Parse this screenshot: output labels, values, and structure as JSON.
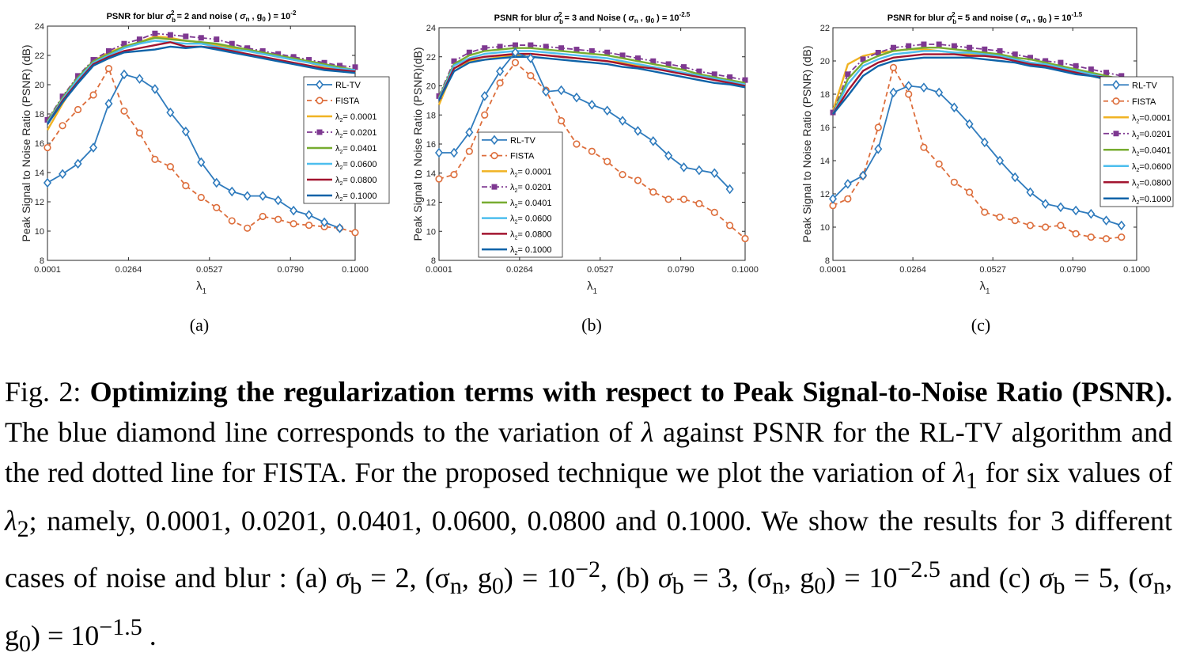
{
  "chart_data": [
    {
      "type": "line",
      "panel_label": "(a)",
      "title_parts": [
        "PSNR for blur ",
        "σ",
        "b",
        "2",
        " = 2 and noise ( ",
        "σ",
        "n",
        " , g",
        "0",
        " ) = 10",
        "-2"
      ],
      "xlabel": "λ",
      "xlabel_sub": "1",
      "ylabel": "Peak Signal to Noise Ratio (PSNR) (dB)",
      "x": [
        0.0001,
        0.005,
        0.01,
        0.015,
        0.02,
        0.025,
        0.03,
        0.035,
        0.04,
        0.045,
        0.05,
        0.055,
        0.06,
        0.065,
        0.07,
        0.075,
        0.08,
        0.085,
        0.09,
        0.095,
        0.1
      ],
      "xticks": [
        "0.0001",
        "0.0264",
        "0.0527",
        "0.0790",
        "0.1000"
      ],
      "xlim": [
        0.0001,
        0.1
      ],
      "ylim": [
        8,
        24
      ],
      "yticks": [
        8,
        10,
        12,
        14,
        16,
        18,
        20,
        22,
        24
      ],
      "legend_position": "right",
      "series": [
        {
          "name": "RL-TV",
          "color": "#2f7bbd",
          "marker": "diamond",
          "style": "solid",
          "values": [
            13.3,
            13.9,
            14.6,
            15.7,
            18.7,
            20.7,
            20.4,
            19.7,
            18.1,
            16.8,
            14.7,
            13.3,
            12.7,
            12.4,
            12.4,
            12.1,
            11.4,
            11.1,
            10.6,
            10.2,
            null
          ]
        },
        {
          "name": "FISTA",
          "color": "#dd6e3c",
          "marker": "circle",
          "style": "dashed",
          "values": [
            15.7,
            17.2,
            18.3,
            19.3,
            21.1,
            18.2,
            16.7,
            14.9,
            14.4,
            13.1,
            12.3,
            11.6,
            10.7,
            10.2,
            11.0,
            10.8,
            10.5,
            10.4,
            10.3,
            10.2,
            9.9
          ]
        },
        {
          "name": "λ2= 0.0001",
          "color": "#f0b323",
          "marker": "",
          "style": "solid",
          "values": [
            16.9,
            18.7,
            20.4,
            21.6,
            22.2,
            22.6,
            22.9,
            23.3,
            23.2,
            23.0,
            22.9,
            22.7,
            22.5,
            22.3,
            22.1,
            21.9,
            21.7,
            21.5,
            21.2,
            21.0,
            20.8
          ]
        },
        {
          "name": "λ2= 0.0201",
          "color": "#7e3891",
          "marker": "square",
          "style": "dashdot",
          "values": [
            17.6,
            19.2,
            20.6,
            21.7,
            22.3,
            22.8,
            23.1,
            23.5,
            23.4,
            23.3,
            23.2,
            23.1,
            22.8,
            22.5,
            22.3,
            22.1,
            21.9,
            21.7,
            21.5,
            21.3,
            21.2
          ]
        },
        {
          "name": "λ2= 0.0401",
          "color": "#77ac30",
          "marker": "",
          "style": "solid",
          "values": [
            17.5,
            19.1,
            20.5,
            21.6,
            22.1,
            22.6,
            22.9,
            23.2,
            23.1,
            23.0,
            22.9,
            22.8,
            22.6,
            22.4,
            22.2,
            22.0,
            21.8,
            21.6,
            21.4,
            21.2,
            21.0
          ]
        },
        {
          "name": "λ2= 0.0600",
          "color": "#4dbeee",
          "marker": "",
          "style": "solid",
          "values": [
            17.4,
            19.0,
            20.4,
            21.5,
            22.0,
            22.5,
            22.8,
            23.0,
            22.9,
            22.8,
            22.8,
            22.6,
            22.4,
            22.3,
            22.1,
            21.9,
            21.7,
            21.5,
            21.3,
            21.1,
            21.0
          ]
        },
        {
          "name": "λ2= 0.0800",
          "color": "#a2142f",
          "marker": "",
          "style": "solid",
          "values": [
            17.3,
            18.9,
            20.2,
            21.4,
            21.9,
            22.3,
            22.5,
            22.7,
            22.9,
            22.6,
            22.6,
            22.5,
            22.3,
            22.1,
            21.9,
            21.7,
            21.5,
            21.3,
            21.1,
            21.0,
            20.9
          ]
        },
        {
          "name": "λ2= 0.1000",
          "color": "#0e63a8",
          "marker": "",
          "style": "solid",
          "values": [
            17.3,
            18.8,
            20.1,
            21.3,
            21.8,
            22.2,
            22.3,
            22.4,
            22.6,
            22.5,
            22.6,
            22.4,
            22.2,
            22.0,
            21.8,
            21.6,
            21.4,
            21.2,
            21.0,
            20.9,
            20.8
          ]
        }
      ]
    },
    {
      "type": "line",
      "panel_label": "(b)",
      "title_parts": [
        "PSNR for blur  ",
        "σ",
        "b",
        "2",
        " = 3 and Noise ( ",
        "σ",
        "n",
        " , g",
        "0",
        " ) = 10",
        "-2.5"
      ],
      "xlabel": "λ",
      "xlabel_sub": "1",
      "ylabel": "Peak Signal to Noise Ratio (PSNR)(dB)",
      "x": [
        0.0001,
        0.005,
        0.01,
        0.015,
        0.02,
        0.025,
        0.03,
        0.035,
        0.04,
        0.045,
        0.05,
        0.055,
        0.06,
        0.065,
        0.07,
        0.075,
        0.08,
        0.085,
        0.09,
        0.095,
        0.1
      ],
      "xticks": [
        "0.0001",
        "0.0264",
        "0.0527",
        "0.0790",
        "0.1000"
      ],
      "xlim": [
        0.0001,
        0.1
      ],
      "ylim": [
        8,
        24
      ],
      "yticks": [
        8,
        10,
        12,
        14,
        16,
        18,
        20,
        22,
        24
      ],
      "legend_position": "left",
      "series": [
        {
          "name": "RL-TV",
          "color": "#2f7bbd",
          "marker": "diamond",
          "style": "solid",
          "values": [
            15.4,
            15.4,
            16.8,
            19.3,
            21.0,
            22.3,
            21.9,
            19.6,
            19.7,
            19.2,
            18.7,
            18.3,
            17.6,
            16.9,
            16.2,
            15.2,
            14.4,
            14.2,
            14.0,
            12.9,
            null
          ]
        },
        {
          "name": "FISTA",
          "color": "#dd6e3c",
          "marker": "circle",
          "style": "dashed",
          "values": [
            13.6,
            13.9,
            15.5,
            18.0,
            20.2,
            21.6,
            20.7,
            19.7,
            17.6,
            16.0,
            15.5,
            14.8,
            13.9,
            13.5,
            12.7,
            12.2,
            12.2,
            11.9,
            11.3,
            10.4,
            9.5
          ]
        },
        {
          "name": "λ2= 0.0001",
          "color": "#f0b323",
          "marker": "",
          "style": "solid",
          "values": [
            18.7,
            21.2,
            21.7,
            21.8,
            22.0,
            22.1,
            22.2,
            22.1,
            22.0,
            21.9,
            21.8,
            21.7,
            21.6,
            21.4,
            21.3,
            21.1,
            20.9,
            20.7,
            20.5,
            20.3,
            20.1
          ]
        },
        {
          "name": "λ2= 0.0201",
          "color": "#7e3891",
          "marker": "square",
          "style": "dashdot",
          "values": [
            19.3,
            21.7,
            22.3,
            22.6,
            22.7,
            22.8,
            22.8,
            22.7,
            22.6,
            22.5,
            22.4,
            22.3,
            22.1,
            21.9,
            21.7,
            21.5,
            21.3,
            21.0,
            20.8,
            20.6,
            20.4
          ]
        },
        {
          "name": "λ2= 0.0401",
          "color": "#77ac30",
          "marker": "",
          "style": "solid",
          "values": [
            19.2,
            21.5,
            22.1,
            22.4,
            22.5,
            22.6,
            22.6,
            22.5,
            22.4,
            22.3,
            22.2,
            22.1,
            21.9,
            21.7,
            21.5,
            21.3,
            21.1,
            20.8,
            20.6,
            20.4,
            20.2
          ]
        },
        {
          "name": "λ2= 0.0600",
          "color": "#4dbeee",
          "marker": "",
          "style": "solid",
          "values": [
            19.1,
            21.4,
            21.9,
            22.2,
            22.3,
            22.4,
            22.4,
            22.3,
            22.2,
            22.1,
            22.0,
            21.9,
            21.7,
            21.5,
            21.3,
            21.1,
            20.9,
            20.7,
            20.5,
            20.3,
            20.1
          ]
        },
        {
          "name": "λ2= 0.0800",
          "color": "#a2142f",
          "marker": "",
          "style": "solid",
          "values": [
            19.0,
            21.2,
            21.8,
            22.0,
            22.1,
            22.2,
            22.2,
            22.1,
            22.0,
            21.9,
            21.8,
            21.7,
            21.5,
            21.3,
            21.2,
            21.0,
            20.8,
            20.6,
            20.4,
            20.2,
            20.0
          ]
        },
        {
          "name": "λ2= 0.1000",
          "color": "#0e63a8",
          "marker": "",
          "style": "solid",
          "values": [
            19.0,
            21.0,
            21.6,
            21.8,
            21.9,
            22.0,
            22.0,
            21.9,
            21.8,
            21.7,
            21.6,
            21.5,
            21.3,
            21.2,
            21.0,
            20.8,
            20.6,
            20.4,
            20.2,
            20.1,
            19.9
          ]
        }
      ]
    },
    {
      "type": "line",
      "panel_label": "(c)",
      "title_parts": [
        "PSNR for blur ",
        "σ",
        "b",
        "2",
        " = 5 and noise ( ",
        "σ",
        "n",
        " , g",
        "0",
        " ) = 10",
        "-1.5"
      ],
      "xlabel": "λ",
      "xlabel_sub": "1",
      "ylabel": "Peak Signal to Noise Ratio (PSNR) (dB)",
      "x": [
        0.0001,
        0.005,
        0.01,
        0.015,
        0.02,
        0.025,
        0.03,
        0.035,
        0.04,
        0.045,
        0.05,
        0.055,
        0.06,
        0.065,
        0.07,
        0.075,
        0.08,
        0.085,
        0.09,
        0.095,
        0.1
      ],
      "xticks": [
        "0.0001",
        "0.0264",
        "0.0527",
        "0.0790",
        "0.1000"
      ],
      "xlim": [
        0.0001,
        0.1
      ],
      "ylim": [
        8,
        22
      ],
      "yticks": [
        8,
        10,
        12,
        14,
        16,
        18,
        20,
        22
      ],
      "legend_position": "right",
      "series": [
        {
          "name": "RL-TV",
          "color": "#2f7bbd",
          "marker": "diamond",
          "style": "solid",
          "values": [
            11.7,
            12.6,
            13.1,
            14.7,
            18.1,
            18.5,
            18.4,
            18.1,
            17.2,
            16.2,
            15.1,
            14.0,
            13.0,
            12.1,
            11.4,
            11.2,
            11.0,
            10.8,
            10.4,
            10.1,
            null
          ]
        },
        {
          "name": "FISTA",
          "color": "#dd6e3c",
          "marker": "circle",
          "style": "dashed",
          "values": [
            11.3,
            11.7,
            13.1,
            16.0,
            19.6,
            18.0,
            14.8,
            13.8,
            12.7,
            12.1,
            10.9,
            10.6,
            10.4,
            10.1,
            10.0,
            10.1,
            9.6,
            9.4,
            9.3,
            9.4,
            null
          ]
        },
        {
          "name": "λ2=0.0001",
          "color": "#f0b323",
          "marker": "",
          "style": "solid",
          "values": [
            17.0,
            19.8,
            20.3,
            20.5,
            20.6,
            20.7,
            20.7,
            20.6,
            20.5,
            20.4,
            20.3,
            20.2,
            20.1,
            19.9,
            19.7,
            19.5,
            19.3,
            19.1,
            18.9,
            18.7,
            null
          ]
        },
        {
          "name": "λ2=0.0201",
          "color": "#7e3891",
          "marker": "square",
          "style": "dashdot",
          "values": [
            16.9,
            19.2,
            20.1,
            20.5,
            20.8,
            20.9,
            21.0,
            21.0,
            20.9,
            20.8,
            20.7,
            20.6,
            20.4,
            20.2,
            20.0,
            19.9,
            19.7,
            19.5,
            19.3,
            19.1,
            null
          ]
        },
        {
          "name": "λ2=0.0401",
          "color": "#77ac30",
          "marker": "",
          "style": "solid",
          "values": [
            16.8,
            18.9,
            19.9,
            20.3,
            20.6,
            20.7,
            20.8,
            20.8,
            20.7,
            20.6,
            20.5,
            20.4,
            20.2,
            20.1,
            19.9,
            19.7,
            19.5,
            19.3,
            19.1,
            18.9,
            null
          ]
        },
        {
          "name": "λ2=0.0600",
          "color": "#4dbeee",
          "marker": "",
          "style": "solid",
          "values": [
            16.8,
            18.6,
            19.7,
            20.1,
            20.4,
            20.5,
            20.6,
            20.6,
            20.5,
            20.5,
            20.4,
            20.3,
            20.1,
            19.9,
            19.8,
            19.6,
            19.4,
            19.2,
            19.0,
            18.9,
            null
          ]
        },
        {
          "name": "λ2=0.0800",
          "color": "#a2142f",
          "marker": "",
          "style": "solid",
          "values": [
            16.8,
            18.2,
            19.4,
            19.9,
            20.2,
            20.3,
            20.4,
            20.4,
            20.4,
            20.3,
            20.3,
            20.2,
            20.0,
            19.8,
            19.7,
            19.5,
            19.3,
            19.1,
            19.0,
            18.8,
            null
          ]
        },
        {
          "name": "λ2=0.1000",
          "color": "#0e63a8",
          "marker": "",
          "style": "solid",
          "values": [
            16.8,
            17.9,
            19.1,
            19.7,
            20.0,
            20.1,
            20.2,
            20.2,
            20.2,
            20.2,
            20.1,
            20.0,
            19.9,
            19.7,
            19.6,
            19.4,
            19.2,
            19.1,
            18.9,
            18.8,
            null
          ]
        }
      ]
    }
  ],
  "caption": {
    "prefix": "Fig. 2: ",
    "bold": "Optimizing the regularization terms with respect to Peak Signal-to-Noise Ratio (PSNR).",
    "body_1": " The blue diamond line corresponds to the variation of ",
    "lambda": "λ",
    "body_2": " against PSNR for the RL-TV algorithm and the red dotted line for FISTA. For the proposed technique we plot the variation of ",
    "lambda1": "λ",
    "lambda1_sub": "1",
    "body_3": " for six values of ",
    "lambda2": "λ",
    "lambda2_sub": "2",
    "body_4": "; namely, 0.0001, 0.0201, 0.0401, 0.0600, 0.0800 and 0.1000. We show the results for 3 different cases of noise and blur : (a) ",
    "case_a": "σ",
    "case_a_sub": "b",
    "case_a_rest": " = 2, (σ",
    "case_a_n": "n",
    "case_a_mid": ", g",
    "case_a_0": "0",
    "case_a_end": ") = 10",
    "case_a_exp": "−2",
    "case_b_pre": ", (b) ",
    "case_b": "σ",
    "case_b_sub": "b",
    "case_b_rest": " = 3, (σ",
    "case_b_n": "n",
    "case_b_mid": ", g",
    "case_b_0": "0",
    "case_b_end": ") = 10",
    "case_b_exp": "−2.5",
    "case_c_pre": " and (c) ",
    "case_c": "σ",
    "case_c_sub": "b",
    "case_c_rest": " = 5, (σ",
    "case_c_n": "n",
    "case_c_mid": ", g",
    "case_c_0": "0",
    "case_c_end": ") = 10",
    "case_c_exp": "−1.5",
    "end": " ."
  }
}
